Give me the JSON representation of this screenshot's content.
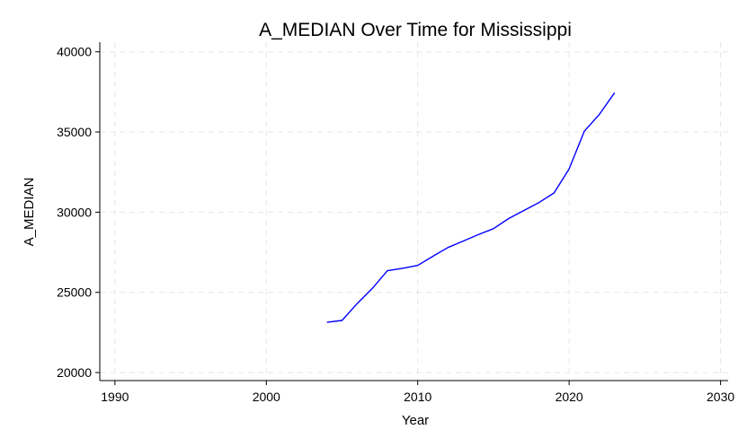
{
  "chart_data": {
    "type": "line",
    "title": "A_MEDIAN Over Time for Mississippi",
    "xlabel": "Year",
    "ylabel": "A_MEDIAN",
    "xlim": [
      1989,
      2030.5
    ],
    "ylim": [
      19500,
      40600
    ],
    "xticks": [
      1990,
      2000,
      2010,
      2020,
      2030
    ],
    "yticks": [
      20000,
      25000,
      30000,
      35000,
      40000
    ],
    "grid": true,
    "series": [
      {
        "color": "#0000ff",
        "x": [
          2004,
          2005,
          2006,
          2007,
          2008,
          2009,
          2010,
          2011,
          2012,
          2013,
          2014,
          2015,
          2016,
          2017,
          2018,
          2019,
          2020,
          2021,
          2022,
          2023
        ],
        "y": [
          23130,
          23250,
          24300,
          25250,
          26350,
          26500,
          26680,
          27250,
          27800,
          28200,
          28600,
          28970,
          29600,
          30100,
          30600,
          31200,
          32700,
          35050,
          36100,
          37450
        ]
      }
    ]
  }
}
